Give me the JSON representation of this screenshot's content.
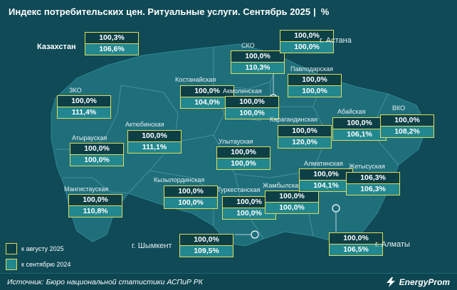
{
  "title": "Индекс потребительских цен. Ритуальные услуги. Сентябрь 2025",
  "title_sep": "|",
  "unit": "%",
  "kazakhstan": {
    "label": "Казахстан",
    "a": "100,3%",
    "b": "106,6%"
  },
  "regions": [
    {
      "id": "zko",
      "name": "ЗКО",
      "a": "100,0%",
      "b": "111,4%"
    },
    {
      "id": "atyrau",
      "name": "Атырауская",
      "a": "100,0%",
      "b": "100,0%"
    },
    {
      "id": "mangistau",
      "name": "Мангистауская",
      "a": "100,0%",
      "b": "110,8%"
    },
    {
      "id": "aktobe",
      "name": "Актюбинская",
      "a": "100,0%",
      "b": "111,1%"
    },
    {
      "id": "kostanay",
      "name": "Костанайская",
      "a": "100,0%",
      "b": "104,0%"
    },
    {
      "id": "sko",
      "name": "СКО",
      "a": "100,0%",
      "b": "110,3%"
    },
    {
      "id": "akmola",
      "name": "Акмолинская",
      "a": "100,0%",
      "b": "100,0%"
    },
    {
      "id": "pavlodar",
      "name": "Павлодарская",
      "a": "100,0%",
      "b": "100,0%"
    },
    {
      "id": "karaganda",
      "name": "Карагандинская",
      "a": "100,0%",
      "b": "120,0%"
    },
    {
      "id": "abay",
      "name": "Абайская",
      "a": "100,0%",
      "b": "106,1%"
    },
    {
      "id": "vko",
      "name": "ВКО",
      "a": "100,0%",
      "b": "108,2%"
    },
    {
      "id": "ulytau",
      "name": "Улытауская",
      "a": "100,0%",
      "b": "100,0%"
    },
    {
      "id": "kyzylorda",
      "name": "Кызылординская",
      "a": "100,0%",
      "b": "100,0%"
    },
    {
      "id": "turkestan",
      "name": "Туркестанская",
      "a": "100,0%",
      "b": "100,0%"
    },
    {
      "id": "zhambyl",
      "name": "Жамбылская",
      "a": "100,0%",
      "b": "100,0%"
    },
    {
      "id": "almaty_obl",
      "name": "Алматинская",
      "a": "100,0%",
      "b": "104,1%"
    },
    {
      "id": "zhetysu",
      "name": "Жетысуская",
      "a": "106,3%",
      "b": "106,3%"
    }
  ],
  "cities": [
    {
      "id": "astana",
      "name": "г. Астана",
      "a": "100,0%",
      "b": "100,0%"
    },
    {
      "id": "shymkent",
      "name": "г. Шымкент",
      "a": "100,0%",
      "b": "109,5%"
    },
    {
      "id": "almaty",
      "name": "г. Алматы",
      "a": "100,0%",
      "b": "106,5%"
    }
  ],
  "legend": [
    {
      "label": "к августу 2025",
      "color": "#0d3f47"
    },
    {
      "label": "к сентябрю 2024",
      "color": "#22878e"
    }
  ],
  "colors": {
    "background": "#0f4a56",
    "map_fill": "#1f6f7b",
    "border": "#e0dc5a"
  },
  "source": "Источник: Бюро национальной статистики АСПиР РК",
  "brand": "EnergyProm"
}
